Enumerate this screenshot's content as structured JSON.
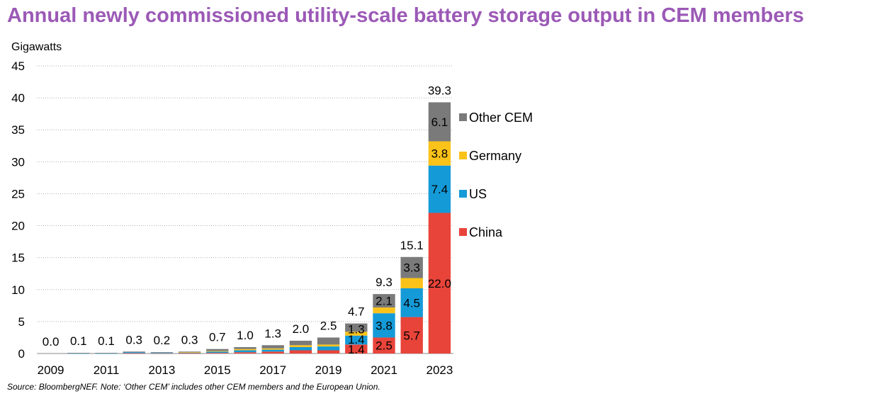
{
  "chart_data": {
    "type": "bar",
    "stacked": true,
    "title": "Annual newly commissioned utility-scale battery storage output in CEM members",
    "ylabel": "Gigawatts",
    "ylim": [
      0,
      45
    ],
    "yticks": [
      0,
      5,
      10,
      15,
      20,
      25,
      30,
      35,
      40,
      45
    ],
    "grid": true,
    "legend_position": "right",
    "categories": [
      "2009",
      "2010",
      "2011",
      "2012",
      "2013",
      "2014",
      "2015",
      "2016",
      "2017",
      "2018",
      "2019",
      "2020",
      "2021",
      "2022",
      "2023"
    ],
    "x_tick_labels": [
      "2009",
      "2011",
      "2013",
      "2015",
      "2017",
      "2019",
      "2021",
      "2023"
    ],
    "series": [
      {
        "name": "China",
        "color": "#e8443a",
        "values": [
          0,
          0,
          0,
          0.05,
          0.05,
          0.05,
          0.1,
          0.2,
          0.3,
          0.5,
          0.5,
          1.4,
          2.5,
          5.7,
          22.0
        ]
      },
      {
        "name": "US",
        "color": "#159ad8",
        "values": [
          0,
          0.05,
          0.05,
          0.15,
          0.05,
          0.1,
          0.2,
          0.3,
          0.3,
          0.5,
          0.6,
          1.4,
          3.8,
          4.5,
          7.4
        ]
      },
      {
        "name": "Germany",
        "color": "#fbc21a",
        "values": [
          0,
          0,
          0,
          0,
          0,
          0.05,
          0.1,
          0.2,
          0.2,
          0.3,
          0.3,
          0.6,
          0.9,
          1.6,
          3.8
        ]
      },
      {
        "name": "Other CEM",
        "color": "#7a7a7a",
        "values": [
          0,
          0.05,
          0.05,
          0.1,
          0.1,
          0.1,
          0.3,
          0.3,
          0.5,
          0.7,
          1.1,
          1.3,
          2.1,
          3.3,
          6.1
        ]
      }
    ],
    "totals": [
      "0.0",
      "0.1",
      "0.1",
      "0.3",
      "0.2",
      "0.3",
      "0.7",
      "1.0",
      "1.3",
      "2.0",
      "2.5",
      "4.7",
      "9.3",
      "15.1",
      "39.3"
    ],
    "segment_labels": [
      {
        "index": 11,
        "series": 0,
        "text": "1.4"
      },
      {
        "index": 11,
        "series": 1,
        "text": "1.4"
      },
      {
        "index": 11,
        "series": 3,
        "text": "1.3"
      },
      {
        "index": 12,
        "series": 0,
        "text": "2.5"
      },
      {
        "index": 12,
        "series": 1,
        "text": "3.8"
      },
      {
        "index": 12,
        "series": 3,
        "text": "2.1"
      },
      {
        "index": 13,
        "series": 0,
        "text": "5.7"
      },
      {
        "index": 13,
        "series": 1,
        "text": "4.5"
      },
      {
        "index": 13,
        "series": 3,
        "text": "3.3"
      },
      {
        "index": 14,
        "series": 0,
        "text": "22.0"
      },
      {
        "index": 14,
        "series": 1,
        "text": "7.4"
      },
      {
        "index": 14,
        "series": 2,
        "text": "3.8"
      },
      {
        "index": 14,
        "series": 3,
        "text": "6.1"
      }
    ],
    "source": "Source: BloombergNEF. Note: ‘Other CEM’ includes other CEM members and the European Union."
  }
}
